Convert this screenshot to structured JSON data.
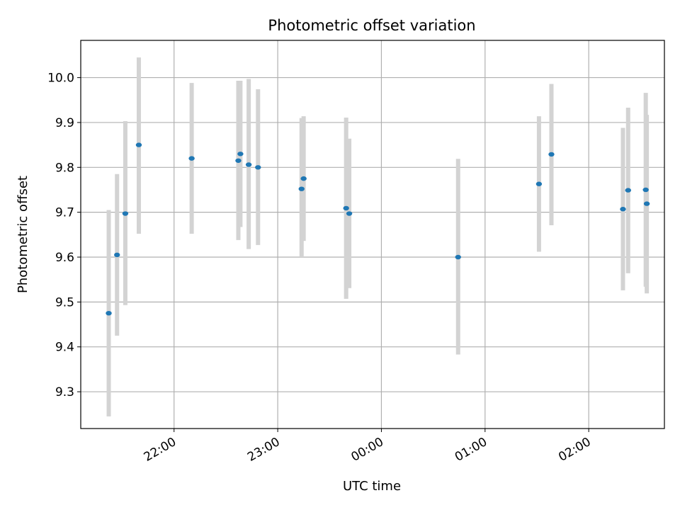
{
  "chart_data": {
    "type": "scatter",
    "title": "Photometric offset variation",
    "xlabel": "UTC time",
    "ylabel": "Photometric offset",
    "x_unit": "UTC clock time (hours past 00:00; values above 24 are the following day)",
    "xlim": [
      21.1,
      26.73
    ],
    "ylim": [
      9.218,
      10.083
    ],
    "xticks": [
      {
        "value": 22,
        "label": "22:00"
      },
      {
        "value": 23,
        "label": "23:00"
      },
      {
        "value": 24,
        "label": "00:00"
      },
      {
        "value": 25,
        "label": "01:00"
      },
      {
        "value": 26,
        "label": "02:00"
      }
    ],
    "yticks": [
      {
        "value": 9.3,
        "label": "9.3"
      },
      {
        "value": 9.4,
        "label": "9.4"
      },
      {
        "value": 9.5,
        "label": "9.5"
      },
      {
        "value": 9.6,
        "label": "9.6"
      },
      {
        "value": 9.7,
        "label": "9.7"
      },
      {
        "value": 9.8,
        "label": "9.8"
      },
      {
        "value": 9.9,
        "label": "9.9"
      },
      {
        "value": 10.0,
        "label": "10.0"
      }
    ],
    "grid": true,
    "point_color": "#1f77b4",
    "errorbar_color": "#d3d3d3",
    "points": [
      {
        "x": 21.37,
        "y": 9.475,
        "ylow": 9.245,
        "yhigh": 9.705
      },
      {
        "x": 21.45,
        "y": 9.605,
        "ylow": 9.425,
        "yhigh": 9.785
      },
      {
        "x": 21.53,
        "y": 9.697,
        "ylow": 9.493,
        "yhigh": 9.903
      },
      {
        "x": 21.66,
        "y": 9.85,
        "ylow": 9.652,
        "yhigh": 10.045
      },
      {
        "x": 22.17,
        "y": 9.82,
        "ylow": 9.652,
        "yhigh": 9.988
      },
      {
        "x": 22.62,
        "y": 9.815,
        "ylow": 9.638,
        "yhigh": 9.993
      },
      {
        "x": 22.64,
        "y": 9.83,
        "ylow": 9.667,
        "yhigh": 9.993
      },
      {
        "x": 22.72,
        "y": 9.806,
        "ylow": 9.618,
        "yhigh": 9.997
      },
      {
        "x": 22.81,
        "y": 9.8,
        "ylow": 9.627,
        "yhigh": 9.974
      },
      {
        "x": 23.23,
        "y": 9.752,
        "ylow": 9.6,
        "yhigh": 9.91
      },
      {
        "x": 23.25,
        "y": 9.775,
        "ylow": 9.636,
        "yhigh": 9.914
      },
      {
        "x": 23.66,
        "y": 9.709,
        "ylow": 9.507,
        "yhigh": 9.911
      },
      {
        "x": 23.69,
        "y": 9.697,
        "ylow": 9.531,
        "yhigh": 9.864
      },
      {
        "x": 24.74,
        "y": 9.6,
        "ylow": 9.383,
        "yhigh": 9.819
      },
      {
        "x": 25.52,
        "y": 9.763,
        "ylow": 9.612,
        "yhigh": 9.914
      },
      {
        "x": 25.64,
        "y": 9.829,
        "ylow": 9.671,
        "yhigh": 9.986
      },
      {
        "x": 26.33,
        "y": 9.707,
        "ylow": 9.526,
        "yhigh": 9.888
      },
      {
        "x": 26.38,
        "y": 9.749,
        "ylow": 9.564,
        "yhigh": 9.933
      },
      {
        "x": 26.55,
        "y": 9.75,
        "ylow": 9.534,
        "yhigh": 9.966
      },
      {
        "x": 26.56,
        "y": 9.719,
        "ylow": 9.519,
        "yhigh": 9.917
      }
    ]
  }
}
